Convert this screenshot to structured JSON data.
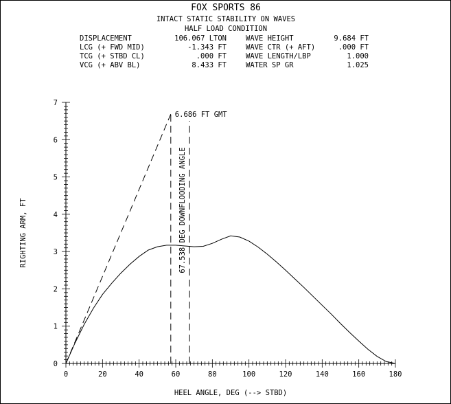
{
  "chart_data": {
    "type": "line",
    "title": "FOX SPORTS 86",
    "subtitle": "INTACT STATIC STABILITY ON WAVES",
    "subtitle2": "HALF LOAD CONDITION",
    "xlabel": "HEEL ANGLE, DEG (--> STBD)",
    "ylabel": "RIGHTING ARM, FT",
    "xlim": [
      0,
      180
    ],
    "ylim": [
      0,
      7
    ],
    "x_ticks": [
      "0",
      "20",
      "40",
      "60",
      "80",
      "100",
      "120",
      "140",
      "160",
      "180"
    ],
    "y_ticks": [
      "0",
      "1",
      "2",
      "3",
      "4",
      "5",
      "6",
      "7"
    ],
    "params_left": [
      {
        "label": "DISPLACEMENT",
        "value": "106.067 LTON"
      },
      {
        "label": "LCG (+ FWD MID)",
        "value": "-1.343 FT"
      },
      {
        "label": "TCG (+ STBD CL)",
        "value": ".000 FT"
      },
      {
        "label": "VCG (+ ABV BL)",
        "value": "8.433 FT"
      }
    ],
    "params_right": [
      {
        "label": "WAVE HEIGHT",
        "value": "9.684 FT"
      },
      {
        "label": "WAVE CTR (+ AFT)",
        "value": ".000 FT"
      },
      {
        "label": "WAVE LENGTH/LBP",
        "value": "1.000"
      },
      {
        "label": "WATER SP GR",
        "value": "1.025"
      }
    ],
    "series": [
      {
        "x": [
          0,
          5,
          10,
          15,
          20,
          25,
          30,
          35,
          40,
          45,
          50,
          55,
          60,
          65,
          70,
          75,
          80,
          85,
          90,
          95,
          100,
          105,
          110,
          115,
          120,
          125,
          130,
          135,
          140,
          145,
          150,
          155,
          160,
          165,
          170,
          175,
          180
        ],
        "y": [
          0,
          0.55,
          1.05,
          1.48,
          1.85,
          2.15,
          2.42,
          2.66,
          2.87,
          3.04,
          3.13,
          3.17,
          3.17,
          3.15,
          3.13,
          3.14,
          3.22,
          3.33,
          3.42,
          3.39,
          3.28,
          3.12,
          2.93,
          2.72,
          2.5,
          2.27,
          2.04,
          1.8,
          1.56,
          1.32,
          1.07,
          0.83,
          0.6,
          0.38,
          0.19,
          0.05,
          0
        ]
      }
    ],
    "gmt_line": {
      "x": [
        0,
        57.3
      ],
      "y": [
        0,
        6.686
      ],
      "label": "6.686 FT GMT"
    },
    "downflooding": {
      "x": 67.538,
      "label": "67.538 DEG DOWNFLOODING ANGLE"
    },
    "radian_marker_x": 57.3,
    "grid": false
  }
}
